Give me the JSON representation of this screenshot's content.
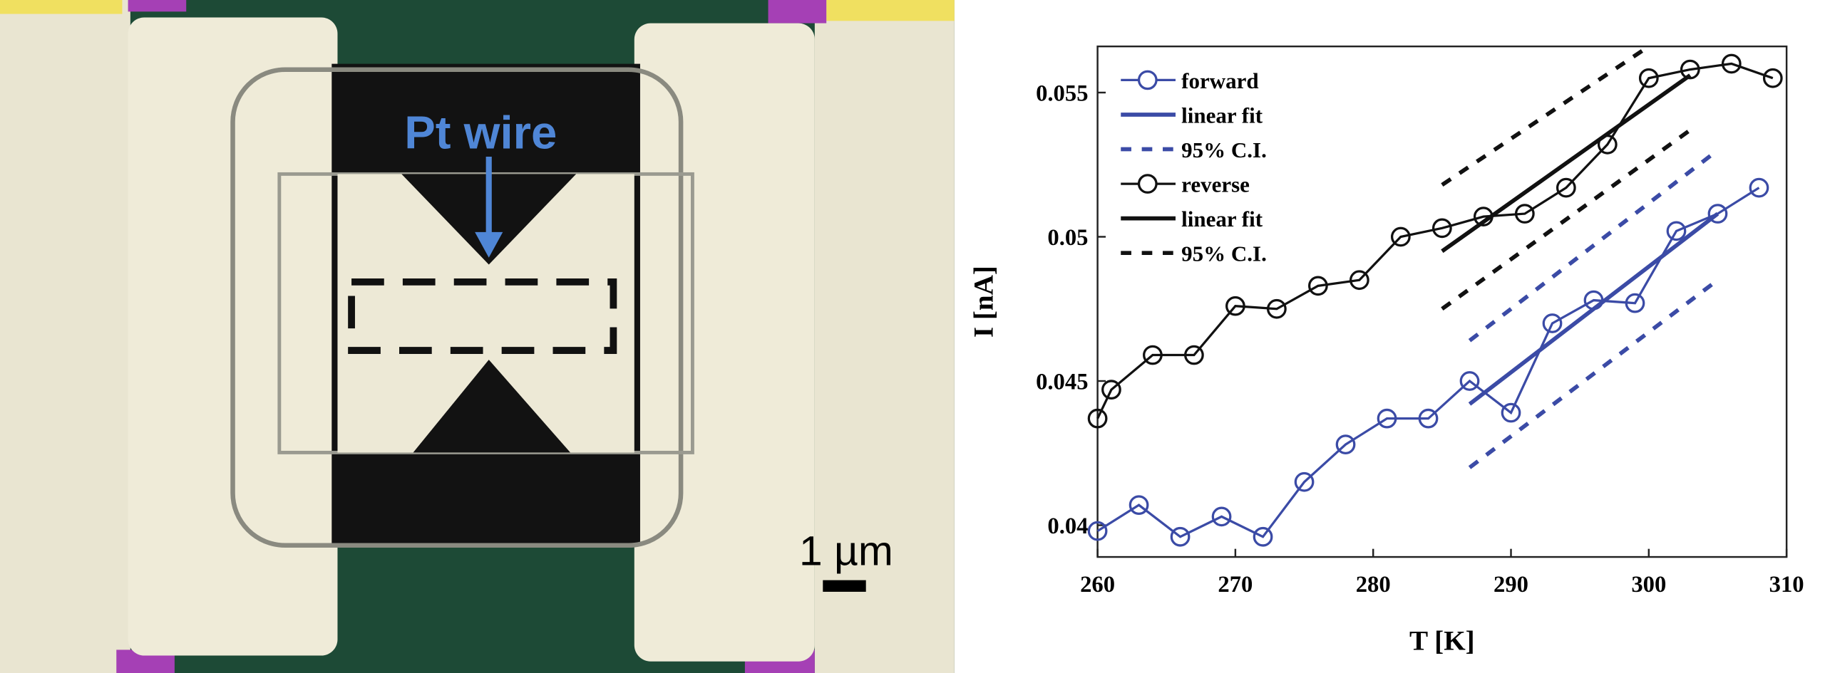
{
  "micrograph": {
    "annotation": "Pt wire",
    "scale_bar": "1 µm"
  },
  "chart_data": {
    "type": "line",
    "xlabel": "T [K]",
    "ylabel": "I [nA]",
    "xlim": [
      260,
      310
    ],
    "xticks": [
      260,
      270,
      280,
      290,
      300,
      310
    ],
    "ylim": [
      0.0389,
      0.0566
    ],
    "yticks": [
      0.04,
      0.045,
      0.05,
      0.055
    ],
    "legend": "upper left",
    "series": [
      {
        "name": "forward",
        "color": "#3b4ba6",
        "marker": "circle",
        "dash": false,
        "x": [
          260,
          263,
          266,
          269,
          272,
          275,
          278,
          281,
          284,
          287,
          290,
          293,
          296,
          299,
          302,
          305,
          308
        ],
        "values": [
          0.0398,
          0.0407,
          0.0396,
          0.0403,
          0.0396,
          0.0415,
          0.0428,
          0.0437,
          0.0437,
          0.045,
          0.0439,
          0.047,
          0.0478,
          0.0477,
          0.0502,
          0.0508,
          0.0517
        ]
      },
      {
        "name": "linear fit",
        "color": "#3b4ba6",
        "marker": "none",
        "dash": false,
        "x": [
          287,
          305
        ],
        "values": [
          0.0442,
          0.0508
        ]
      },
      {
        "name": "95% C.I.",
        "color": "#3b4ba6",
        "marker": "none",
        "dash": true,
        "x": [
          287,
          305,
          null,
          287,
          305
        ],
        "values": [
          0.0464,
          0.053,
          null,
          0.042,
          0.0485
        ]
      },
      {
        "name": "reverse",
        "color": "#111111",
        "marker": "circle",
        "dash": false,
        "x": [
          260,
          261,
          264,
          267,
          270,
          273,
          276,
          279,
          282,
          285,
          288,
          291,
          294,
          297,
          300,
          303,
          306,
          309
        ],
        "values": [
          0.0437,
          0.0447,
          0.0459,
          0.0459,
          0.0476,
          0.0475,
          0.0483,
          0.0485,
          0.05,
          0.0503,
          0.0507,
          0.0508,
          0.0517,
          0.0532,
          0.0555,
          0.0558,
          0.056,
          0.0555
        ]
      },
      {
        "name": "linear fit",
        "color": "#111111",
        "marker": "none",
        "dash": false,
        "x": [
          285,
          303
        ],
        "values": [
          0.0495,
          0.0556
        ]
      },
      {
        "name": "95% C.I.",
        "color": "#111111",
        "marker": "none",
        "dash": true,
        "x": [
          285,
          300,
          null,
          285,
          303
        ],
        "values": [
          0.0518,
          0.0566,
          null,
          0.0475,
          0.0537
        ]
      }
    ]
  }
}
